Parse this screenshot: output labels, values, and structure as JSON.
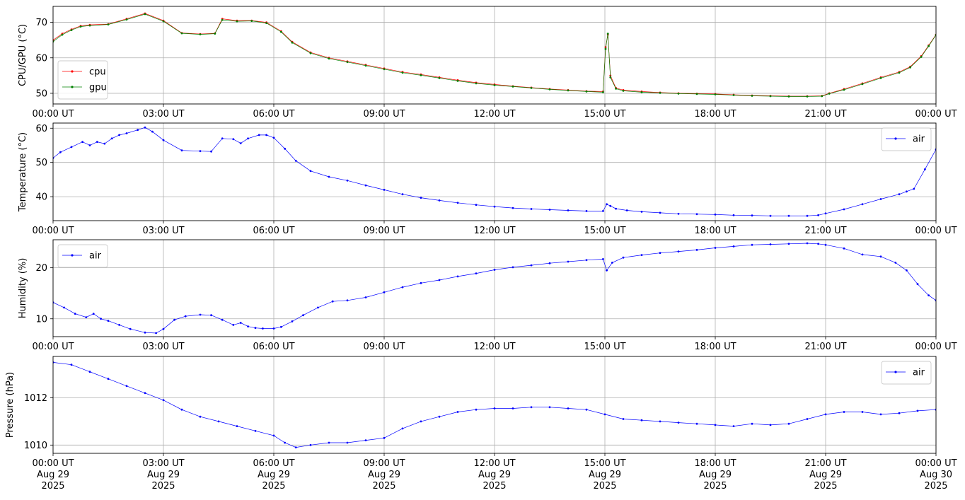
{
  "chart_data": [
    {
      "type": "line",
      "ylabel": "CPU/GPU (°C)",
      "ylim": [
        47,
        74.5
      ],
      "yticks": [
        50,
        60,
        70
      ],
      "xlim": [
        0,
        24
      ],
      "xtick_labels": [
        "00:00 UT",
        "03:00 UT",
        "06:00 UT",
        "09:00 UT",
        "12:00 UT",
        "15:00 UT",
        "18:00 UT",
        "21:00 UT",
        "00:00 UT"
      ],
      "grid": true,
      "legend": "lower-left",
      "series": [
        {
          "name": "cpu",
          "color": "#ff0000",
          "x": [
            0,
            0.25,
            0.5,
            0.75,
            1,
            1.5,
            2,
            2.5,
            3,
            3.5,
            4,
            4.4,
            4.6,
            5,
            5.4,
            5.8,
            6.2,
            6.5,
            7,
            7.5,
            8,
            8.5,
            9,
            9.5,
            10,
            10.5,
            11,
            11.5,
            12,
            12.5,
            13,
            13.5,
            14,
            14.5,
            14.95,
            15.02,
            15.08,
            15.15,
            15.3,
            15.5,
            16,
            16.5,
            17,
            17.5,
            18,
            18.5,
            19,
            19.5,
            20,
            20.5,
            20.9,
            21.1,
            21.5,
            22,
            22.5,
            23,
            23.3,
            23.6,
            23.8,
            24
          ],
          "y": [
            65,
            66.8,
            68,
            69,
            69.3,
            69.5,
            71,
            72.5,
            70.5,
            67,
            66.7,
            66.9,
            71,
            70.5,
            70.5,
            70,
            67.5,
            64.5,
            61.5,
            60,
            59,
            58,
            57,
            56,
            55.3,
            54.5,
            53.7,
            53,
            52.5,
            52,
            51.6,
            51.2,
            50.9,
            50.6,
            50.5,
            63,
            66.5,
            55,
            51.5,
            50.9,
            50.5,
            50.2,
            50,
            49.9,
            49.8,
            49.6,
            49.4,
            49.3,
            49.2,
            49.2,
            49.3,
            50,
            51.2,
            52.8,
            54.5,
            56,
            57.5,
            60.5,
            63.5,
            66.5
          ]
        },
        {
          "name": "gpu",
          "color": "#008000",
          "x": [
            0,
            0.25,
            0.5,
            0.75,
            1,
            1.5,
            2,
            2.5,
            3,
            3.5,
            4,
            4.4,
            4.6,
            5,
            5.4,
            5.8,
            6.2,
            6.5,
            7,
            7.5,
            8,
            8.5,
            9,
            9.5,
            10,
            10.5,
            11,
            11.5,
            12,
            12.5,
            13,
            13.5,
            14,
            14.5,
            14.95,
            15.02,
            15.08,
            15.15,
            15.3,
            15.5,
            16,
            16.5,
            17,
            17.5,
            18,
            18.5,
            19,
            19.5,
            20,
            20.5,
            20.9,
            21.1,
            21.5,
            22,
            22.5,
            23,
            23.3,
            23.6,
            23.8,
            24
          ],
          "y": [
            64.6,
            66.5,
            67.8,
            68.8,
            69.1,
            69.4,
            70.8,
            72.3,
            70.3,
            66.9,
            66.6,
            66.8,
            70.7,
            70.3,
            70.4,
            69.8,
            67.3,
            64.3,
            61.3,
            59.8,
            58.8,
            57.8,
            56.8,
            55.8,
            55.1,
            54.3,
            53.5,
            52.8,
            52.3,
            51.9,
            51.5,
            51.1,
            50.8,
            50.5,
            50.3,
            62.5,
            66.8,
            54.5,
            51.3,
            50.7,
            50.3,
            50.1,
            49.9,
            49.8,
            49.7,
            49.5,
            49.3,
            49.2,
            49.1,
            49.1,
            49.2,
            49.9,
            51,
            52.6,
            54.3,
            55.8,
            57.3,
            60.3,
            63.3,
            66.4
          ]
        }
      ]
    },
    {
      "type": "line",
      "ylabel": "Temperature (°C)",
      "ylim": [
        33,
        61.5
      ],
      "yticks": [
        40,
        50,
        60
      ],
      "xlim": [
        0,
        24
      ],
      "xtick_labels": [
        "00:00 UT",
        "03:00 UT",
        "06:00 UT",
        "09:00 UT",
        "12:00 UT",
        "15:00 UT",
        "18:00 UT",
        "21:00 UT",
        "00:00 UT"
      ],
      "grid": true,
      "legend": "top-right",
      "series": [
        {
          "name": "air",
          "color": "#0000ff",
          "x": [
            0,
            0.2,
            0.5,
            0.8,
            1,
            1.2,
            1.4,
            1.6,
            1.8,
            2,
            2.3,
            2.5,
            2.7,
            3,
            3.5,
            4,
            4.3,
            4.6,
            4.9,
            5.1,
            5.3,
            5.6,
            5.8,
            6,
            6.3,
            6.6,
            7,
            7.5,
            8,
            8.5,
            9,
            9.5,
            10,
            10.5,
            11,
            11.5,
            12,
            12.5,
            13,
            13.5,
            14,
            14.5,
            14.95,
            15.05,
            15.15,
            15.3,
            15.6,
            16,
            16.5,
            17,
            17.5,
            18,
            18.5,
            19,
            19.5,
            20,
            20.5,
            20.8,
            21,
            21.5,
            22,
            22.5,
            23,
            23.2,
            23.4,
            23.7,
            24
          ],
          "y": [
            51.3,
            53,
            54.5,
            56,
            55,
            56,
            55.5,
            57,
            58,
            58.5,
            59.5,
            60.2,
            59,
            56.5,
            53.5,
            53.3,
            53.2,
            57,
            56.8,
            55.6,
            57,
            58,
            58,
            57.2,
            54,
            50.5,
            47.5,
            45.8,
            44.7,
            43.3,
            42,
            40.7,
            39.7,
            38.9,
            38.2,
            37.6,
            37.1,
            36.7,
            36.4,
            36.2,
            36,
            35.8,
            35.8,
            37.8,
            37.3,
            36.5,
            36,
            35.6,
            35.3,
            35,
            34.9,
            34.8,
            34.6,
            34.5,
            34.4,
            34.4,
            34.4,
            34.6,
            35.1,
            36.3,
            37.8,
            39.3,
            40.7,
            41.5,
            42.3,
            48,
            53.8
          ]
        }
      ]
    },
    {
      "type": "line",
      "ylabel": "Humidity (%)",
      "ylim": [
        6.5,
        25.5
      ],
      "yticks": [
        10,
        20
      ],
      "xlim": [
        0,
        24
      ],
      "xtick_labels": [
        "00:00 UT",
        "03:00 UT",
        "06:00 UT",
        "09:00 UT",
        "12:00 UT",
        "15:00 UT",
        "18:00 UT",
        "21:00 UT",
        "00:00 UT"
      ],
      "grid": true,
      "legend": "top-left",
      "series": [
        {
          "name": "air",
          "color": "#0000ff",
          "x": [
            0,
            0.3,
            0.6,
            0.9,
            1.1,
            1.3,
            1.5,
            1.8,
            2.1,
            2.5,
            2.8,
            3,
            3.3,
            3.6,
            4,
            4.3,
            4.6,
            4.9,
            5.1,
            5.3,
            5.5,
            5.7,
            6,
            6.2,
            6.5,
            6.8,
            7.2,
            7.6,
            8,
            8.5,
            9,
            9.5,
            10,
            10.5,
            11,
            11.5,
            12,
            12.5,
            13,
            13.5,
            14,
            14.5,
            14.95,
            15.05,
            15.2,
            15.5,
            16,
            16.5,
            17,
            17.5,
            18,
            18.5,
            19,
            19.5,
            20,
            20.5,
            20.8,
            21,
            21.5,
            22,
            22.5,
            22.9,
            23.2,
            23.5,
            23.8,
            24
          ],
          "y": [
            13.2,
            12.2,
            11,
            10.3,
            11,
            10,
            9.6,
            8.8,
            8,
            7.3,
            7.2,
            8,
            9.8,
            10.5,
            10.8,
            10.7,
            9.8,
            8.8,
            9.2,
            8.5,
            8.2,
            8.1,
            8.1,
            8.4,
            9.5,
            10.7,
            12.2,
            13.4,
            13.6,
            14.2,
            15.2,
            16.2,
            17,
            17.6,
            18.3,
            18.9,
            19.6,
            20.1,
            20.5,
            20.9,
            21.2,
            21.5,
            21.7,
            19.5,
            21,
            22,
            22.5,
            22.9,
            23.2,
            23.5,
            23.9,
            24.2,
            24.5,
            24.6,
            24.7,
            24.8,
            24.7,
            24.5,
            23.8,
            22.6,
            22.2,
            21,
            19.5,
            16.8,
            14.6,
            13.6
          ]
        }
      ]
    },
    {
      "type": "line",
      "ylabel": "Pressure (hPa)",
      "ylim": [
        1009.65,
        1013.75
      ],
      "yticks": [
        1010,
        1012
      ],
      "xlim": [
        0,
        24
      ],
      "xtick_labels": [
        "00:00 UT\nAug 29\n2025",
        "03:00 UT\nAug 29\n2025",
        "06:00 UT\nAug 29\n2025",
        "09:00 UT\nAug 29\n2025",
        "12:00 UT\nAug 29\n2025",
        "15:00 UT\nAug 29\n2025",
        "18:00 UT\nAug 29\n2025",
        "21:00 UT\nAug 29\n2025",
        "00:00 UT\nAug 30\n2025"
      ],
      "grid": true,
      "legend": "top-right",
      "series": [
        {
          "name": "air",
          "color": "#0000ff",
          "x": [
            0,
            0.5,
            1,
            1.5,
            2,
            2.5,
            3,
            3.5,
            4,
            4.5,
            5,
            5.5,
            6,
            6.3,
            6.6,
            7,
            7.5,
            8,
            8.5,
            9,
            9.5,
            10,
            10.5,
            11,
            11.5,
            12,
            12.5,
            13,
            13.5,
            14,
            14.5,
            15,
            15.5,
            16,
            16.5,
            17,
            17.5,
            18,
            18.5,
            19,
            19.5,
            20,
            20.5,
            21,
            21.5,
            22,
            22.5,
            23,
            23.5,
            24
          ],
          "y": [
            1013.5,
            1013.4,
            1013.1,
            1012.8,
            1012.5,
            1012.2,
            1011.9,
            1011.5,
            1011.2,
            1011,
            1010.8,
            1010.6,
            1010.4,
            1010.1,
            1009.9,
            1010,
            1010.1,
            1010.1,
            1010.2,
            1010.3,
            1010.7,
            1011,
            1011.2,
            1011.4,
            1011.5,
            1011.55,
            1011.55,
            1011.6,
            1011.6,
            1011.55,
            1011.5,
            1011.3,
            1011.1,
            1011.05,
            1011,
            1010.95,
            1010.9,
            1010.85,
            1010.8,
            1010.9,
            1010.85,
            1010.9,
            1011.1,
            1011.3,
            1011.4,
            1011.4,
            1011.3,
            1011.35,
            1011.45,
            1011.5
          ]
        }
      ]
    }
  ]
}
